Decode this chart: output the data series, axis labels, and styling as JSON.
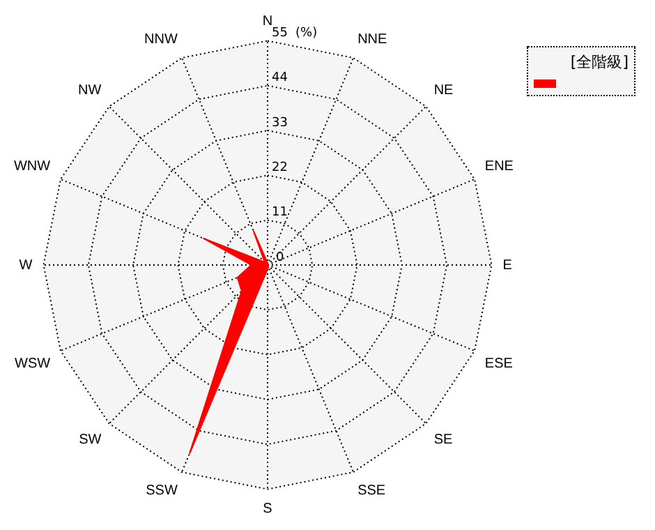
{
  "chart_data": {
    "type": "radar",
    "ylabel": "(%)",
    "legend": "top right",
    "grid": true,
    "line_style": "dotted",
    "marker": "none",
    "categories": [
      "N",
      "NNE",
      "NE",
      "ENE",
      "E",
      "ESE",
      "SE",
      "SSE",
      "S",
      "SSW",
      "SW",
      "WSW",
      "W",
      "WNW",
      "NW",
      "NNW"
    ],
    "ylim": [
      0,
      55
    ],
    "yticks": [
      0,
      11,
      22,
      33,
      44,
      55
    ],
    "series": [
      {
        "name": "[全階級]",
        "color": "#ff0000",
        "values": [
          0.5,
          0,
          0,
          0,
          0,
          0,
          0,
          0.5,
          1,
          50,
          9,
          8,
          4,
          17,
          1,
          9
        ]
      }
    ]
  }
}
